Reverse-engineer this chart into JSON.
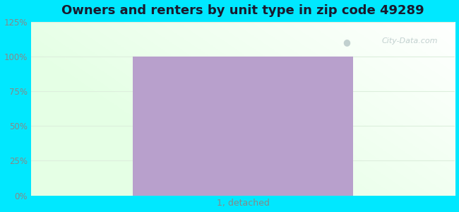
{
  "title": "Owners and renters by unit type in zip code 49289",
  "categories": [
    "1, detached"
  ],
  "values": [
    100
  ],
  "bar_color": "#b8a0cc",
  "bar_edge_color": "#a890bc",
  "ylim": [
    0,
    125
  ],
  "yticks": [
    0,
    25,
    50,
    75,
    100,
    125
  ],
  "ytick_labels": [
    "0%",
    "25%",
    "50%",
    "75%",
    "100%",
    "125%"
  ],
  "title_fontsize": 13,
  "title_color": "#1a1a2e",
  "tick_color": "#888888",
  "bg_outer": "#00e8ff",
  "watermark_text": "City-Data.com",
  "bar_width": 0.52,
  "grid_color": "#ddeedd",
  "grid_linewidth": 0.8
}
